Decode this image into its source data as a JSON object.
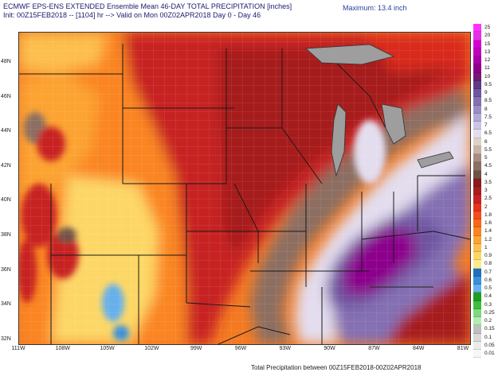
{
  "header": {
    "line1": "ECMWF EPS-ENS EXTENDED Ensemble Mean 46-DAY TOTAL PRECIPITATION [inches]",
    "line2": "Init: 00Z15FEB2018 -- [1104] hr --> Valid on Mon 00Z02APR2018  Day 0 - Day 46",
    "maximum": "Maximum: 13.4 inch"
  },
  "footer": "Total Precipitation between 00Z15FEB2018-00Z02APR2018",
  "latitudes": [
    "48N",
    "46N",
    "44N",
    "42N",
    "40N",
    "38N",
    "36N",
    "34N",
    "32N"
  ],
  "longitudes": [
    "111W",
    "108W",
    "105W",
    "102W",
    "99W",
    "96W",
    "93W",
    "90W",
    "87W",
    "84W",
    "81W"
  ],
  "legend": {
    "items": [
      {
        "label": "25",
        "color": "#ff33ff"
      },
      {
        "label": "20",
        "color": "#e62ee6"
      },
      {
        "label": "15",
        "color": "#d400d4"
      },
      {
        "label": "13",
        "color": "#bf00bf"
      },
      {
        "label": "12",
        "color": "#a600a6"
      },
      {
        "label": "11",
        "color": "#8c008c"
      },
      {
        "label": "10",
        "color": "#731a73"
      },
      {
        "label": "9.5",
        "color": "#5e3a87"
      },
      {
        "label": "9",
        "color": "#6e55a0"
      },
      {
        "label": "8.5",
        "color": "#8470b3"
      },
      {
        "label": "8",
        "color": "#9b8cc6"
      },
      {
        "label": "7.5",
        "color": "#b3a9d6"
      },
      {
        "label": "7",
        "color": "#cbc4e4"
      },
      {
        "label": "6.5",
        "color": "#e3ddee"
      },
      {
        "label": "6",
        "color": "#ded1c8"
      },
      {
        "label": "5.5",
        "color": "#c8b3a6"
      },
      {
        "label": "5",
        "color": "#a88c80"
      },
      {
        "label": "4.5",
        "color": "#8c6e62"
      },
      {
        "label": "4",
        "color": "#6e5247"
      },
      {
        "label": "3.5",
        "color": "#8c1a1a"
      },
      {
        "label": "3",
        "color": "#a61e1e"
      },
      {
        "label": "2.5",
        "color": "#c72222"
      },
      {
        "label": "2",
        "color": "#e6331a"
      },
      {
        "label": "1.8",
        "color": "#f24d1a"
      },
      {
        "label": "1.6",
        "color": "#f7661a"
      },
      {
        "label": "1.4",
        "color": "#fa8522"
      },
      {
        "label": "1.2",
        "color": "#fca333"
      },
      {
        "label": "1",
        "color": "#fdbf4d"
      },
      {
        "label": "0.9",
        "color": "#fdd766"
      },
      {
        "label": "0.8",
        "color": "#fdea8c"
      },
      {
        "label": "0.7",
        "color": "#1f6fbf"
      },
      {
        "label": "0.6",
        "color": "#3a8fd9"
      },
      {
        "label": "0.5",
        "color": "#66b0eb"
      },
      {
        "label": "0.4",
        "color": "#1e9e1e"
      },
      {
        "label": "0.3",
        "color": "#3dbf3d"
      },
      {
        "label": "0.25",
        "color": "#7fd97f"
      },
      {
        "label": "0.2",
        "color": "#b3ebb3"
      },
      {
        "label": "0.15",
        "color": "#bfbfbf"
      },
      {
        "label": "0.1",
        "color": "#d9d9d9"
      },
      {
        "label": "0.05",
        "color": "#ebebeb"
      },
      {
        "label": "0.01",
        "color": "#f7f7f7"
      }
    ]
  }
}
